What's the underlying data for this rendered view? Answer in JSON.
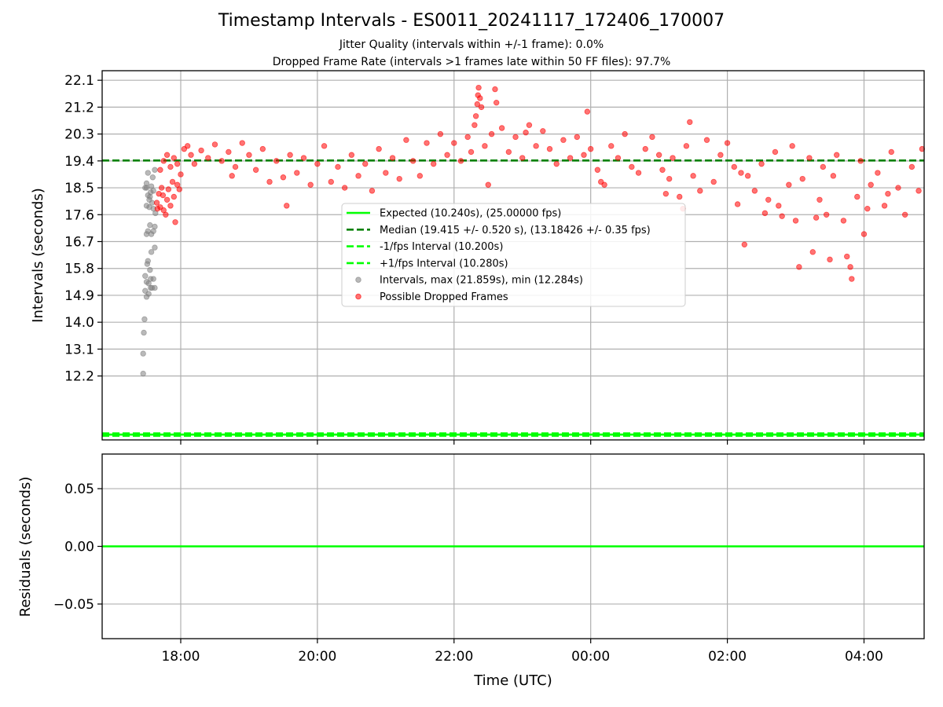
{
  "chart_data": [
    {
      "type": "scatter",
      "title": "Timestamp Intervals - ES0011_20241117_172406_170007",
      "subtitle_lines": [
        "Jitter Quality (intervals within +/-1 frame): 0.0%",
        "Dropped Frame Rate (intervals >1 frames late within 50 FF files): 97.7%"
      ],
      "xlabel": "",
      "ylabel": "Intervals (seconds)",
      "x_range_hours": [
        16.85,
        28.88
      ],
      "ylim": [
        10.06,
        22.42
      ],
      "yticks": [
        "22.1",
        "21.2",
        "20.3",
        "19.4",
        "18.5",
        "17.6",
        "16.7",
        "15.8",
        "14.9",
        "14.0",
        "13.1",
        "12.2"
      ],
      "ytick_values": [
        22.1,
        21.2,
        20.3,
        19.4,
        18.5,
        17.6,
        16.7,
        15.8,
        14.9,
        14.0,
        13.1,
        12.2
      ],
      "xticks": [
        "18:00",
        "20:00",
        "22:00",
        "00:00",
        "02:00",
        "04:00"
      ],
      "xtick_values": [
        18,
        20,
        22,
        24,
        26,
        28
      ],
      "grid": true,
      "legend_position": "center",
      "lines": [
        {
          "name": "Expected (10.240s), (25.00000 fps)",
          "y": 10.24,
          "color": "#00ff00",
          "style": "solid"
        },
        {
          "name": "Median (19.415 +/- 0.520 s), (13.18426 +/- 0.35 fps)",
          "y": 19.415,
          "color": "#008000",
          "style": "dashed"
        },
        {
          "name": "-1/fps Interval (10.200s)",
          "y": 10.2,
          "color": "#00ff00",
          "style": "dashed"
        },
        {
          "name": "+1/fps Interval (10.280s)",
          "y": 10.28,
          "color": "#00ff00",
          "style": "dashed"
        }
      ],
      "series": [
        {
          "name": "Intervals, max (21.859s), min (12.284s)",
          "color": "#808080",
          "points": [
            [
              17.45,
              12.28
            ],
            [
              17.45,
              12.95
            ],
            [
              17.46,
              13.65
            ],
            [
              17.47,
              14.1
            ],
            [
              17.48,
              15.05
            ],
            [
              17.48,
              15.55
            ],
            [
              17.5,
              14.85
            ],
            [
              17.5,
              15.35
            ],
            [
              17.51,
              15.95
            ],
            [
              17.52,
              16.05
            ],
            [
              17.53,
              14.95
            ],
            [
              17.53,
              15.3
            ],
            [
              17.55,
              15.75
            ],
            [
              17.56,
              15.15
            ],
            [
              17.56,
              15.45
            ],
            [
              17.57,
              16.35
            ],
            [
              17.58,
              15.15
            ],
            [
              17.6,
              15.45
            ],
            [
              17.62,
              15.15
            ],
            [
              17.62,
              16.5
            ],
            [
              17.62,
              17.2
            ],
            [
              17.5,
              16.95
            ],
            [
              17.52,
              17.05
            ],
            [
              17.55,
              17.25
            ],
            [
              17.57,
              16.95
            ],
            [
              17.6,
              17.05
            ],
            [
              17.63,
              17.65
            ],
            [
              17.5,
              17.9
            ],
            [
              17.52,
              18.25
            ],
            [
              17.54,
              18.1
            ],
            [
              17.56,
              18.35
            ],
            [
              17.58,
              18.0
            ],
            [
              17.6,
              18.4
            ],
            [
              17.5,
              18.5
            ],
            [
              17.55,
              18.2
            ],
            [
              17.48,
              18.5
            ],
            [
              17.5,
              18.65
            ],
            [
              17.52,
              19.0
            ],
            [
              17.57,
              18.55
            ],
            [
              17.59,
              18.85
            ],
            [
              17.62,
              19.1
            ],
            [
              17.6,
              17.8
            ],
            [
              17.54,
              17.85
            ]
          ]
        },
        {
          "name": "Possible Dropped Frames",
          "color": "#ff0000",
          "points": [
            [
              17.65,
              18.0
            ],
            [
              17.66,
              17.8
            ],
            [
              17.68,
              18.3
            ],
            [
              17.7,
              17.85
            ],
            [
              17.72,
              18.5
            ],
            [
              17.74,
              18.25
            ],
            [
              17.75,
              17.75
            ],
            [
              17.78,
              17.6
            ],
            [
              17.8,
              18.1
            ],
            [
              17.82,
              18.45
            ],
            [
              17.85,
              17.9
            ],
            [
              17.88,
              18.7
            ],
            [
              17.9,
              18.2
            ],
            [
              17.92,
              17.35
            ],
            [
              17.95,
              18.6
            ],
            [
              17.98,
              18.45
            ],
            [
              18.0,
              18.95
            ],
            [
              17.7,
              19.1
            ],
            [
              17.75,
              19.4
            ],
            [
              17.8,
              19.6
            ],
            [
              17.85,
              19.2
            ],
            [
              17.9,
              19.5
            ],
            [
              17.95,
              19.3
            ],
            [
              18.05,
              19.8
            ],
            [
              18.1,
              19.9
            ],
            [
              18.15,
              19.6
            ],
            [
              18.2,
              19.3
            ],
            [
              18.3,
              19.75
            ],
            [
              18.4,
              19.5
            ],
            [
              18.5,
              19.95
            ],
            [
              18.6,
              19.4
            ],
            [
              18.7,
              19.7
            ],
            [
              18.75,
              18.9
            ],
            [
              18.8,
              19.2
            ],
            [
              18.9,
              20.0
            ],
            [
              19.0,
              19.6
            ],
            [
              19.1,
              19.1
            ],
            [
              19.2,
              19.8
            ],
            [
              19.3,
              18.7
            ],
            [
              19.4,
              19.4
            ],
            [
              19.5,
              18.85
            ],
            [
              19.55,
              17.9
            ],
            [
              19.6,
              19.6
            ],
            [
              19.7,
              19.0
            ],
            [
              19.8,
              19.5
            ],
            [
              19.9,
              18.6
            ],
            [
              20.0,
              19.3
            ],
            [
              20.1,
              19.9
            ],
            [
              20.2,
              18.7
            ],
            [
              20.3,
              19.2
            ],
            [
              20.4,
              18.5
            ],
            [
              20.5,
              19.6
            ],
            [
              20.6,
              18.9
            ],
            [
              20.7,
              19.3
            ],
            [
              20.8,
              18.4
            ],
            [
              20.9,
              19.8
            ],
            [
              21.0,
              19.0
            ],
            [
              21.1,
              19.5
            ],
            [
              21.2,
              18.8
            ],
            [
              21.3,
              20.1
            ],
            [
              21.4,
              19.4
            ],
            [
              21.5,
              18.9
            ],
            [
              21.6,
              20.0
            ],
            [
              21.7,
              19.3
            ],
            [
              21.8,
              20.3
            ],
            [
              21.9,
              19.6
            ],
            [
              22.0,
              20.0
            ],
            [
              22.1,
              19.4
            ],
            [
              22.2,
              20.2
            ],
            [
              22.25,
              19.7
            ],
            [
              22.3,
              20.6
            ],
            [
              22.32,
              20.9
            ],
            [
              22.34,
              21.3
            ],
            [
              22.35,
              21.6
            ],
            [
              22.36,
              21.85
            ],
            [
              22.38,
              21.5
            ],
            [
              22.4,
              21.2
            ],
            [
              22.45,
              19.9
            ],
            [
              22.5,
              18.6
            ],
            [
              22.55,
              20.3
            ],
            [
              22.6,
              21.8
            ],
            [
              22.62,
              21.35
            ],
            [
              22.7,
              20.5
            ],
            [
              22.8,
              19.7
            ],
            [
              22.9,
              20.2
            ],
            [
              23.0,
              19.5
            ],
            [
              23.05,
              20.35
            ],
            [
              23.1,
              20.6
            ],
            [
              23.2,
              19.9
            ],
            [
              23.3,
              20.4
            ],
            [
              23.4,
              19.8
            ],
            [
              23.5,
              19.3
            ],
            [
              23.6,
              20.1
            ],
            [
              23.7,
              19.5
            ],
            [
              23.8,
              20.2
            ],
            [
              23.9,
              19.6
            ],
            [
              23.95,
              21.05
            ],
            [
              24.0,
              19.8
            ],
            [
              24.1,
              19.1
            ],
            [
              24.15,
              18.7
            ],
            [
              24.2,
              18.6
            ],
            [
              24.3,
              19.9
            ],
            [
              24.4,
              19.5
            ],
            [
              24.5,
              20.3
            ],
            [
              24.6,
              19.2
            ],
            [
              24.7,
              19.0
            ],
            [
              24.8,
              19.8
            ],
            [
              24.9,
              20.2
            ],
            [
              25.0,
              19.6
            ],
            [
              25.05,
              19.1
            ],
            [
              25.1,
              18.3
            ],
            [
              25.15,
              18.8
            ],
            [
              25.2,
              19.5
            ],
            [
              25.3,
              18.2
            ],
            [
              25.35,
              17.8
            ],
            [
              25.4,
              19.9
            ],
            [
              25.45,
              20.7
            ],
            [
              25.5,
              18.9
            ],
            [
              25.6,
              18.4
            ],
            [
              25.7,
              20.1
            ],
            [
              25.8,
              18.7
            ],
            [
              25.9,
              19.6
            ],
            [
              26.0,
              20.0
            ],
            [
              26.1,
              19.2
            ],
            [
              26.15,
              17.95
            ],
            [
              26.2,
              19.0
            ],
            [
              26.25,
              16.6
            ],
            [
              26.3,
              18.9
            ],
            [
              26.4,
              18.4
            ],
            [
              26.5,
              19.3
            ],
            [
              26.55,
              17.65
            ],
            [
              26.6,
              18.1
            ],
            [
              26.7,
              19.7
            ],
            [
              26.75,
              17.9
            ],
            [
              26.8,
              17.55
            ],
            [
              26.9,
              18.6
            ],
            [
              26.95,
              19.9
            ],
            [
              27.0,
              17.4
            ],
            [
              27.05,
              15.85
            ],
            [
              27.1,
              18.8
            ],
            [
              27.2,
              19.5
            ],
            [
              27.25,
              16.35
            ],
            [
              27.3,
              17.5
            ],
            [
              27.35,
              18.1
            ],
            [
              27.4,
              19.2
            ],
            [
              27.45,
              17.6
            ],
            [
              27.5,
              16.1
            ],
            [
              27.55,
              18.9
            ],
            [
              27.6,
              19.6
            ],
            [
              27.7,
              17.4
            ],
            [
              27.75,
              16.2
            ],
            [
              27.8,
              15.85
            ],
            [
              27.82,
              15.45
            ],
            [
              27.9,
              18.2
            ],
            [
              27.95,
              19.4
            ],
            [
              28.0,
              16.95
            ],
            [
              28.05,
              17.8
            ],
            [
              28.1,
              18.6
            ],
            [
              28.2,
              19.0
            ],
            [
              28.3,
              17.9
            ],
            [
              28.35,
              18.3
            ],
            [
              28.4,
              19.7
            ],
            [
              28.5,
              18.5
            ],
            [
              28.6,
              17.6
            ],
            [
              28.7,
              19.2
            ],
            [
              28.8,
              18.4
            ],
            [
              28.85,
              19.8
            ]
          ]
        }
      ]
    },
    {
      "type": "line",
      "xlabel": "Time (UTC)",
      "ylabel": "Residuals (seconds)",
      "ylim": [
        -0.08,
        0.08
      ],
      "yticks": [
        "0.05",
        "0.00",
        "−0.05"
      ],
      "ytick_values": [
        0.05,
        0.0,
        -0.05
      ],
      "xticks": [
        "18:00",
        "20:00",
        "22:00",
        "00:00",
        "02:00",
        "04:00"
      ],
      "xtick_values": [
        18,
        20,
        22,
        24,
        26,
        28
      ],
      "grid": true,
      "series": [
        {
          "color": "#00ff00",
          "y": 0.0
        }
      ]
    }
  ]
}
